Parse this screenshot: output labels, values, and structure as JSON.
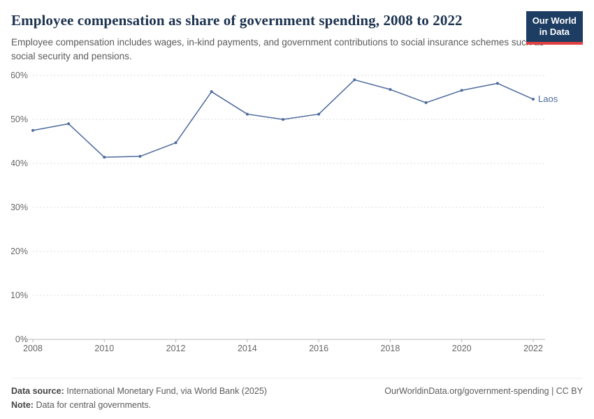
{
  "header": {
    "title": "Employee compensation as share of government spending, 2008 to 2022",
    "subtitle": "Employee compensation includes wages, in-kind payments, and government contributions to social insurance schemes such as social security and pensions."
  },
  "logo": {
    "line1": "Our World",
    "line2": "in Data",
    "background": "#1d3d63",
    "accent": "#e04040"
  },
  "chart_data": {
    "type": "line",
    "title": "Employee compensation as share of government spending, 2008 to 2022",
    "x": [
      2008,
      2009,
      2010,
      2011,
      2012,
      2013,
      2014,
      2015,
      2016,
      2017,
      2018,
      2019,
      2020,
      2021,
      2022
    ],
    "series": [
      {
        "name": "Laos",
        "color": "#4c6a9c",
        "values": [
          47.5,
          49.0,
          41.4,
          41.6,
          44.7,
          56.3,
          51.2,
          50.0,
          51.2,
          59.0,
          56.8,
          53.8,
          56.6,
          58.2,
          54.6
        ]
      }
    ],
    "xlabel": "",
    "ylabel": "",
    "ylim": [
      0,
      60
    ],
    "yticks": [
      0,
      10,
      20,
      30,
      40,
      50,
      60
    ],
    "ytick_suffix": "%",
    "xticks": [
      2008,
      2010,
      2012,
      2014,
      2016,
      2018,
      2020,
      2022
    ],
    "grid": "horizontal-dashed",
    "legend_position": "end-of-line-label"
  },
  "footer": {
    "source_label": "Data source:",
    "source_text": "International Monetary Fund, via World Bank (2025)",
    "note_label": "Note:",
    "note_text": "Data for central governments.",
    "credit": "OurWorldinData.org/government-spending | CC BY"
  }
}
